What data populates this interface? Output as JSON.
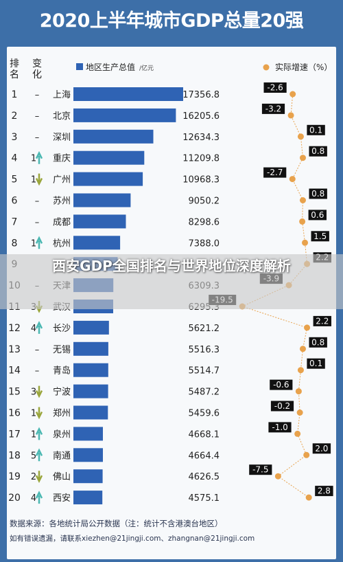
{
  "title": "2020上半年城市GDP总量20强",
  "headers": {
    "rank": [
      "排",
      "名"
    ],
    "change": [
      "变",
      "化"
    ],
    "gdp_legend": "地区生产总值",
    "gdp_unit": "/亿元",
    "growth_legend": "实际增速（%）"
  },
  "overlay_caption": "西安GDP全国排名与世界地位深度解析",
  "footer": {
    "source": "数据来源：各地统计局公开数据（注：统计不含港澳台地区）",
    "feedback": "如有错误遗漏，请联系xiezhen@21jingji.com、zhangnan@21jingji.com"
  },
  "colors": {
    "header_bg": "#3d6fa8",
    "bar": "#2f63b4",
    "growth_dot": "#e8a24c",
    "label_box": "#111111",
    "arrow_up": "#4bb8b2",
    "arrow_down": "#9aa63c"
  },
  "chart_data": {
    "type": "bar",
    "gdp_unit": "亿元",
    "rows": [
      {
        "rank": "1",
        "change": "–",
        "dir": "none",
        "city": "上海",
        "gdp": 17356.8,
        "gdp_label": "17356.8",
        "growth": -2.6,
        "growth_label": "-2.6"
      },
      {
        "rank": "2",
        "change": "–",
        "dir": "none",
        "city": "北京",
        "gdp": 16205.6,
        "gdp_label": "16205.6",
        "growth": -3.2,
        "growth_label": "-3.2"
      },
      {
        "rank": "3",
        "change": "–",
        "dir": "none",
        "city": "深圳",
        "gdp": 12634.3,
        "gdp_label": "12634.3",
        "growth": 0.1,
        "growth_label": "0.1"
      },
      {
        "rank": "4",
        "change": "1",
        "dir": "up",
        "city": "重庆",
        "gdp": 11209.8,
        "gdp_label": "11209.8",
        "growth": 0.8,
        "growth_label": "0.8"
      },
      {
        "rank": "5",
        "change": "1",
        "dir": "down",
        "city": "广州",
        "gdp": 10968.3,
        "gdp_label": "10968.3",
        "growth": -2.7,
        "growth_label": "-2.7"
      },
      {
        "rank": "6",
        "change": "–",
        "dir": "none",
        "city": "苏州",
        "gdp": 9050.2,
        "gdp_label": "9050.2",
        "growth": 0.8,
        "growth_label": "0.8"
      },
      {
        "rank": "7",
        "change": "–",
        "dir": "none",
        "city": "成都",
        "gdp": 8298.6,
        "gdp_label": "8298.6",
        "growth": 0.6,
        "growth_label": "0.6"
      },
      {
        "rank": "8",
        "change": "1",
        "dir": "up",
        "city": "杭州",
        "gdp": 7388.0,
        "gdp_label": "7388.0",
        "growth": 1.5,
        "growth_label": "1.5"
      },
      {
        "rank": "9",
        "change": "",
        "dir": "none",
        "city": "",
        "gdp": 7000,
        "gdp_label": "",
        "growth": 2.2,
        "growth_label": "2.2"
      },
      {
        "rank": "10",
        "change": "–",
        "dir": "none",
        "city": "天津",
        "gdp": 6309.3,
        "gdp_label": "6309.3",
        "growth": -3.9,
        "growth_label": "-3.9"
      },
      {
        "rank": "11",
        "change": "3",
        "dir": "down",
        "city": "武汉",
        "gdp": 6295.3,
        "gdp_label": "6295.3",
        "growth": -19.5,
        "growth_label": "-19.5"
      },
      {
        "rank": "12",
        "change": "4",
        "dir": "up",
        "city": "长沙",
        "gdp": 5621.2,
        "gdp_label": "5621.2",
        "growth": 2.2,
        "growth_label": "2.2"
      },
      {
        "rank": "13",
        "change": "–",
        "dir": "none",
        "city": "无锡",
        "gdp": 5516.3,
        "gdp_label": "5516.3",
        "growth": 0.8,
        "growth_label": "0.8"
      },
      {
        "rank": "14",
        "change": "–",
        "dir": "none",
        "city": "青岛",
        "gdp": 5514.7,
        "gdp_label": "5514.7",
        "growth": 0.1,
        "growth_label": "0.1"
      },
      {
        "rank": "15",
        "change": "3",
        "dir": "down",
        "city": "宁波",
        "gdp": 5487.2,
        "gdp_label": "5487.2",
        "growth": -0.6,
        "growth_label": "-0.6"
      },
      {
        "rank": "16",
        "change": "1",
        "dir": "down",
        "city": "郑州",
        "gdp": 5459.6,
        "gdp_label": "5459.6",
        "growth": -0.2,
        "growth_label": "-0.2"
      },
      {
        "rank": "17",
        "change": "1",
        "dir": "up",
        "city": "泉州",
        "gdp": 4668.1,
        "gdp_label": "4668.1",
        "growth": -1.0,
        "growth_label": "-1.0"
      },
      {
        "rank": "18",
        "change": "5",
        "dir": "up",
        "city": "南通",
        "gdp": 4664.4,
        "gdp_label": "4664.4",
        "growth": 2.0,
        "growth_label": "2.0"
      },
      {
        "rank": "19",
        "change": "2",
        "dir": "down",
        "city": "佛山",
        "gdp": 4626.5,
        "gdp_label": "4626.5",
        "growth": -7.5,
        "growth_label": "-7.5"
      },
      {
        "rank": "20",
        "change": "4",
        "dir": "up",
        "city": "西安",
        "gdp": 4575.1,
        "gdp_label": "4575.1",
        "growth": 2.8,
        "growth_label": "2.8"
      }
    ]
  }
}
